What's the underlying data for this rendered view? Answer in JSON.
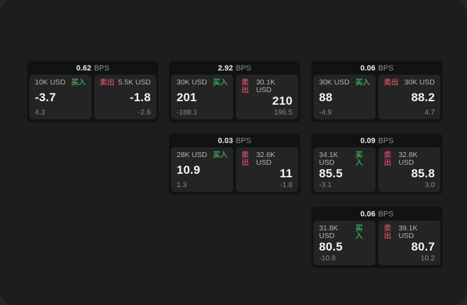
{
  "labels": {
    "bps_unit": "BPS",
    "buy": "买入",
    "sell": "卖出"
  },
  "colors": {
    "page_background": "#1d1d1d",
    "card_background": "#111213",
    "panel_background": "#242424",
    "buy_green": "#3ba35a",
    "sell_red": "#bc4a5f",
    "price_text": "#f4f4f4",
    "muted_text": "#8a8a8a"
  },
  "cards": [
    {
      "bps": "0.62",
      "buy": {
        "amount": "10K USD",
        "price": "-3.7",
        "delta": "4.3"
      },
      "sell": {
        "amount": "5.5K USD",
        "price": "-1.8",
        "delta": "-2.6"
      }
    },
    {
      "bps": "2.92",
      "buy": {
        "amount": "30K USD",
        "price": "201",
        "delta": "-188.1"
      },
      "sell": {
        "amount": "30.1K USD",
        "price": "210",
        "delta": "196.5"
      }
    },
    {
      "bps": "0.03",
      "buy": {
        "amount": "28K USD",
        "price": "10.9",
        "delta": "1.3"
      },
      "sell": {
        "amount": "32.6K USD",
        "price": "11",
        "delta": "-1.8"
      }
    },
    {
      "bps": "0.06",
      "buy": {
        "amount": "30K USD",
        "price": "88",
        "delta": "-4.9"
      },
      "sell": {
        "amount": "30K USD",
        "price": "88.2",
        "delta": "4.7"
      }
    },
    {
      "bps": "0.09",
      "buy": {
        "amount": "34.1K USD",
        "price": "85.5",
        "delta": "-3.1"
      },
      "sell": {
        "amount": "32.8K USD",
        "price": "85.8",
        "delta": "3.0"
      }
    },
    {
      "bps": "0.06",
      "buy": {
        "amount": "31.8K USD",
        "price": "80.5",
        "delta": "-10.8"
      },
      "sell": {
        "amount": "39.1K USD",
        "price": "80.7",
        "delta": "10.2"
      }
    }
  ]
}
